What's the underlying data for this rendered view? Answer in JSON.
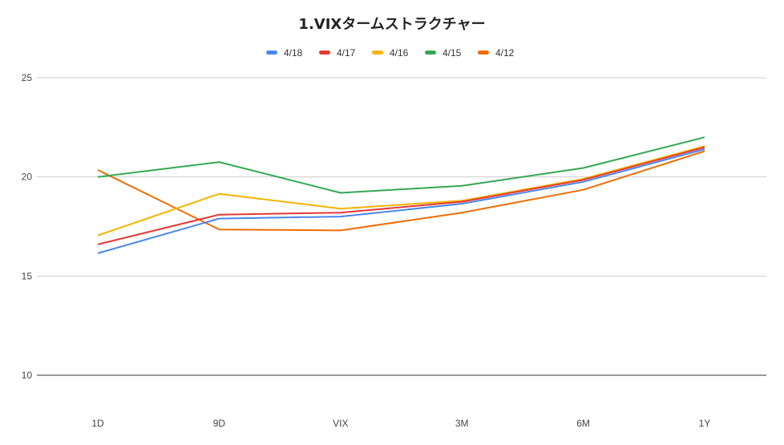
{
  "chart_data": {
    "type": "line",
    "title": "1.VIXタームストラクチャー",
    "xlabel": "",
    "ylabel": "",
    "categories": [
      "1D",
      "9D",
      "VIX",
      "3M",
      "6M",
      "1Y"
    ],
    "ylim": [
      10,
      25
    ],
    "yticks": [
      10,
      15,
      20,
      25
    ],
    "grid": true,
    "legend_position": "top",
    "series": [
      {
        "name": "4/18",
        "color": "#4a86e8",
        "values": [
          16.15,
          17.9,
          18.0,
          18.65,
          19.75,
          21.4
        ]
      },
      {
        "name": "4/17",
        "color": "#e53935",
        "values": [
          16.6,
          18.1,
          18.2,
          18.75,
          19.85,
          21.5
        ]
      },
      {
        "name": "4/16",
        "color": "#f4b400",
        "values": [
          17.05,
          19.15,
          18.4,
          18.8,
          19.9,
          21.55
        ]
      },
      {
        "name": "4/15",
        "color": "#34a853",
        "values": [
          20.0,
          20.75,
          19.2,
          19.55,
          20.45,
          22.0
        ]
      },
      {
        "name": "4/12",
        "color": "#f06c00",
        "values": [
          20.35,
          17.35,
          17.3,
          18.2,
          19.35,
          21.3
        ]
      }
    ]
  }
}
